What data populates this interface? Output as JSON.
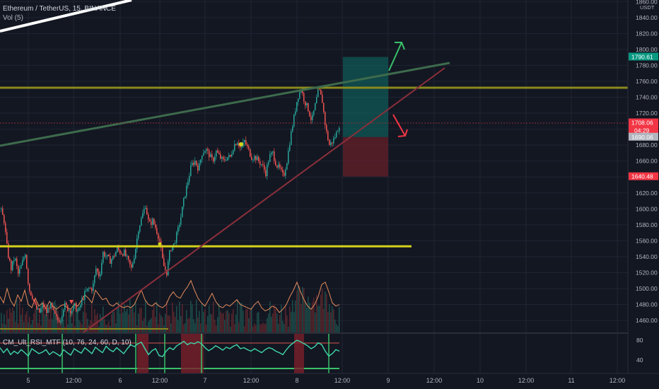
{
  "header": {
    "symbol_line": "Ethereum / TetherUS, 15, BINANCE",
    "volume_label": "Vol (5)"
  },
  "indicator": {
    "label": "CM_Ult_RSI_MTF (10, 76, 24, 60, D, 10)",
    "ticks": [
      "80",
      "40"
    ]
  },
  "chart_data": {
    "type": "candlestick",
    "symbol": "Ethereum / TetherUS",
    "interval": "15",
    "exchange": "BINANCE",
    "y_axis": {
      "unit": "USDT",
      "ylim": [
        1445,
        1862
      ],
      "ticks": [
        1860,
        1840,
        1820,
        1800,
        1780,
        1760,
        1740,
        1720,
        1700,
        1680,
        1660,
        1640,
        1620,
        1600,
        1580,
        1560,
        1540,
        1520,
        1500,
        1480,
        1460
      ]
    },
    "x_axis": {
      "tick_labels": [
        "5",
        "12:00",
        "6",
        "12:00",
        "7",
        "12:00",
        "8",
        "12:00",
        "9",
        "12:00",
        "10",
        "12:00",
        "11",
        "12:00"
      ]
    },
    "price_badges": [
      {
        "label": "1790.61",
        "value": 1790.61,
        "color": "#089981"
      },
      {
        "label": "1708.06",
        "value": 1708.06,
        "color": "#f23645",
        "countdown": "04:29"
      },
      {
        "label": "1690.06",
        "value": 1690.06,
        "color": "#b2b5be"
      },
      {
        "label": "1640.48",
        "value": 1640.48,
        "color": "#f23645"
      }
    ],
    "levels": [
      {
        "name": "resistance",
        "value": 1752,
        "color": "#8a8a1e"
      },
      {
        "name": "support",
        "value": 1553,
        "color": "#d4d21c"
      }
    ],
    "position": {
      "entry": 1690.06,
      "target": 1790.61,
      "stop": 1640.48,
      "profit_color": "#0e6f67",
      "loss_color": "#7a1f2a"
    },
    "price_path": [
      [
        0,
        1600
      ],
      [
        5,
        1585
      ],
      [
        10,
        1545
      ],
      [
        15,
        1525
      ],
      [
        20,
        1540
      ],
      [
        25,
        1518
      ],
      [
        30,
        1530
      ],
      [
        35,
        1545
      ],
      [
        40,
        1500
      ],
      [
        45,
        1490
      ],
      [
        50,
        1475
      ],
      [
        55,
        1470
      ],
      [
        60,
        1480
      ],
      [
        65,
        1470
      ],
      [
        70,
        1480
      ],
      [
        75,
        1470
      ],
      [
        80,
        1460
      ],
      [
        85,
        1462
      ],
      [
        90,
        1480
      ],
      [
        95,
        1475
      ],
      [
        100,
        1472
      ],
      [
        105,
        1478
      ],
      [
        110,
        1470
      ],
      [
        115,
        1485
      ],
      [
        120,
        1495
      ],
      [
        125,
        1500
      ],
      [
        130,
        1500
      ],
      [
        135,
        1525
      ],
      [
        140,
        1515
      ],
      [
        145,
        1545
      ],
      [
        150,
        1540
      ],
      [
        155,
        1535
      ],
      [
        160,
        1540
      ],
      [
        165,
        1550
      ],
      [
        170,
        1545
      ],
      [
        175,
        1545
      ],
      [
        180,
        1535
      ],
      [
        185,
        1525
      ],
      [
        190,
        1545
      ],
      [
        195,
        1575
      ],
      [
        200,
        1590
      ],
      [
        205,
        1605
      ],
      [
        210,
        1580
      ],
      [
        215,
        1585
      ],
      [
        220,
        1575
      ],
      [
        225,
        1560
      ],
      [
        230,
        1530
      ],
      [
        235,
        1520
      ],
      [
        240,
        1550
      ],
      [
        245,
        1555
      ],
      [
        250,
        1570
      ],
      [
        255,
        1590
      ],
      [
        260,
        1615
      ],
      [
        265,
        1635
      ],
      [
        270,
        1655
      ],
      [
        275,
        1660
      ],
      [
        280,
        1650
      ],
      [
        285,
        1670
      ],
      [
        290,
        1675
      ],
      [
        295,
        1668
      ],
      [
        300,
        1660
      ],
      [
        305,
        1672
      ],
      [
        310,
        1665
      ],
      [
        315,
        1660
      ],
      [
        320,
        1665
      ],
      [
        325,
        1665
      ],
      [
        330,
        1680
      ],
      [
        335,
        1685
      ],
      [
        340,
        1675
      ],
      [
        345,
        1685
      ],
      [
        350,
        1675
      ],
      [
        355,
        1665
      ],
      [
        360,
        1665
      ],
      [
        365,
        1660
      ],
      [
        370,
        1655
      ],
      [
        375,
        1645
      ],
      [
        380,
        1665
      ],
      [
        385,
        1670
      ],
      [
        390,
        1655
      ],
      [
        395,
        1650
      ],
      [
        400,
        1640
      ],
      [
        405,
        1660
      ],
      [
        410,
        1690
      ],
      [
        415,
        1715
      ],
      [
        420,
        1740
      ],
      [
        425,
        1750
      ],
      [
        430,
        1735
      ],
      [
        435,
        1725
      ],
      [
        440,
        1710
      ],
      [
        445,
        1730
      ],
      [
        450,
        1750
      ],
      [
        455,
        1735
      ],
      [
        460,
        1700
      ],
      [
        465,
        1680
      ],
      [
        470,
        1685
      ],
      [
        475,
        1695
      ],
      [
        480,
        1708
      ]
    ],
    "rsi_path": [
      [
        0,
        62
      ],
      [
        5,
        52
      ],
      [
        10,
        60
      ],
      [
        15,
        48
      ],
      [
        20,
        55
      ],
      [
        25,
        50
      ],
      [
        30,
        58
      ],
      [
        35,
        52
      ],
      [
        40,
        45
      ],
      [
        45,
        60
      ],
      [
        50,
        55
      ],
      [
        55,
        50
      ],
      [
        60,
        53
      ],
      [
        65,
        58
      ],
      [
        70,
        48
      ],
      [
        75,
        54
      ],
      [
        80,
        50
      ],
      [
        85,
        45
      ],
      [
        90,
        58
      ],
      [
        95,
        52
      ],
      [
        100,
        47
      ],
      [
        105,
        60
      ],
      [
        110,
        55
      ],
      [
        115,
        51
      ],
      [
        120,
        62
      ],
      [
        125,
        56
      ],
      [
        130,
        50
      ],
      [
        135,
        63
      ],
      [
        140,
        57
      ],
      [
        145,
        52
      ],
      [
        150,
        65
      ],
      [
        155,
        58
      ],
      [
        160,
        54
      ],
      [
        165,
        62
      ],
      [
        170,
        56
      ],
      [
        175,
        50
      ],
      [
        180,
        60
      ],
      [
        185,
        68
      ],
      [
        190,
        64
      ],
      [
        195,
        70
      ],
      [
        200,
        73
      ],
      [
        205,
        60
      ],
      [
        210,
        48
      ],
      [
        215,
        56
      ],
      [
        220,
        60
      ],
      [
        225,
        46
      ],
      [
        230,
        44
      ],
      [
        235,
        55
      ],
      [
        240,
        62
      ],
      [
        245,
        58
      ],
      [
        250,
        66
      ],
      [
        255,
        70
      ],
      [
        260,
        75
      ],
      [
        265,
        68
      ],
      [
        270,
        72
      ],
      [
        275,
        70
      ],
      [
        280,
        74
      ],
      [
        285,
        70
      ],
      [
        290,
        62
      ],
      [
        295,
        56
      ],
      [
        300,
        60
      ],
      [
        305,
        66
      ],
      [
        310,
        62
      ],
      [
        315,
        57
      ],
      [
        320,
        63
      ],
      [
        325,
        60
      ],
      [
        330,
        65
      ],
      [
        335,
        68
      ],
      [
        340,
        60
      ],
      [
        345,
        62
      ],
      [
        350,
        58
      ],
      [
        355,
        55
      ],
      [
        360,
        60
      ],
      [
        365,
        56
      ],
      [
        370,
        52
      ],
      [
        375,
        58
      ],
      [
        380,
        62
      ],
      [
        385,
        60
      ],
      [
        390,
        55
      ],
      [
        395,
        52
      ],
      [
        400,
        48
      ],
      [
        405,
        58
      ],
      [
        410,
        66
      ],
      [
        415,
        72
      ],
      [
        420,
        77
      ],
      [
        425,
        74
      ],
      [
        430,
        70
      ],
      [
        435,
        66
      ],
      [
        440,
        60
      ],
      [
        445,
        64
      ],
      [
        450,
        72
      ],
      [
        455,
        68
      ],
      [
        460,
        55
      ],
      [
        465,
        45
      ],
      [
        470,
        50
      ],
      [
        475,
        58
      ],
      [
        480,
        55
      ]
    ],
    "volume_ma_path": [
      [
        0,
        1490
      ],
      [
        5,
        1482
      ],
      [
        10,
        1500
      ],
      [
        15,
        1485
      ],
      [
        20,
        1478
      ],
      [
        25,
        1492
      ],
      [
        30,
        1484
      ],
      [
        35,
        1498
      ],
      [
        40,
        1480
      ],
      [
        45,
        1476
      ],
      [
        50,
        1488
      ],
      [
        55,
        1478
      ],
      [
        60,
        1482
      ],
      [
        65,
        1475
      ],
      [
        70,
        1484
      ],
      [
        75,
        1478
      ],
      [
        80,
        1474
      ],
      [
        85,
        1478
      ],
      [
        90,
        1480
      ],
      [
        95,
        1476
      ],
      [
        100,
        1474
      ],
      [
        105,
        1480
      ],
      [
        110,
        1478
      ],
      [
        115,
        1485
      ],
      [
        120,
        1492
      ],
      [
        125,
        1488
      ],
      [
        130,
        1482
      ],
      [
        135,
        1498
      ],
      [
        140,
        1492
      ],
      [
        145,
        1486
      ],
      [
        150,
        1488
      ],
      [
        155,
        1480
      ],
      [
        160,
        1478
      ],
      [
        165,
        1482
      ],
      [
        170,
        1478
      ],
      [
        175,
        1476
      ],
      [
        180,
        1478
      ],
      [
        185,
        1476
      ],
      [
        190,
        1480
      ],
      [
        195,
        1490
      ],
      [
        200,
        1498
      ],
      [
        205,
        1486
      ],
      [
        210,
        1480
      ],
      [
        215,
        1478
      ],
      [
        220,
        1482
      ],
      [
        225,
        1478
      ],
      [
        230,
        1476
      ],
      [
        235,
        1480
      ],
      [
        240,
        1490
      ],
      [
        245,
        1496
      ],
      [
        250,
        1490
      ],
      [
        255,
        1488
      ],
      [
        260,
        1496
      ],
      [
        265,
        1502
      ],
      [
        270,
        1510
      ],
      [
        275,
        1498
      ],
      [
        280,
        1488
      ],
      [
        285,
        1482
      ],
      [
        290,
        1478
      ],
      [
        295,
        1486
      ],
      [
        300,
        1494
      ],
      [
        305,
        1484
      ],
      [
        310,
        1478
      ],
      [
        315,
        1476
      ],
      [
        320,
        1480
      ],
      [
        325,
        1478
      ],
      [
        330,
        1482
      ],
      [
        335,
        1486
      ],
      [
        340,
        1480
      ],
      [
        345,
        1478
      ],
      [
        350,
        1476
      ],
      [
        355,
        1474
      ],
      [
        360,
        1480
      ],
      [
        365,
        1484
      ],
      [
        370,
        1476
      ],
      [
        375,
        1472
      ],
      [
        380,
        1474
      ],
      [
        385,
        1478
      ],
      [
        390,
        1476
      ],
      [
        395,
        1470
      ],
      [
        400,
        1474
      ],
      [
        405,
        1480
      ],
      [
        410,
        1490
      ],
      [
        415,
        1498
      ],
      [
        420,
        1508
      ],
      [
        425,
        1496
      ],
      [
        430,
        1486
      ],
      [
        435,
        1478
      ],
      [
        440,
        1474
      ],
      [
        445,
        1480
      ],
      [
        450,
        1490
      ],
      [
        455,
        1505
      ],
      [
        460,
        1508
      ],
      [
        465,
        1496
      ],
      [
        470,
        1482
      ],
      [
        475,
        1478
      ],
      [
        480,
        1480
      ]
    ]
  },
  "colors": {
    "background": "#131722",
    "grid": "#1f2433",
    "up": "#26a69a",
    "down": "#ef5350",
    "axis_text": "#b2b5be",
    "volume_ma": "#e58b5a",
    "rsi_line": "#3fd6a8"
  }
}
